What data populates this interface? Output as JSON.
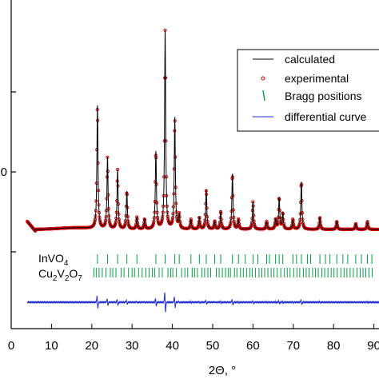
{
  "chart_data": {
    "type": "line",
    "xlabel": "2Θ, °",
    "xlim": [
      0,
      90
    ],
    "x_ticks": [
      "0",
      "10",
      "20",
      "30",
      "40",
      "50",
      "60",
      "70",
      "80",
      "90"
    ],
    "y_ticks": [
      "",
      "0",
      ""
    ],
    "legend": {
      "placement": "top-right",
      "entries": [
        {
          "name": "calculated",
          "color": "#000000",
          "marker": "line"
        },
        {
          "name": "experimental",
          "color": "#cc0000",
          "marker": "circle"
        },
        {
          "name": "Bragg positions",
          "color": "#00a040",
          "marker": "bar"
        },
        {
          "name": "differential curve",
          "color": "#1f2fd0",
          "marker": "line"
        }
      ]
    },
    "background_intensity": 0.0,
    "peaks": [
      {
        "x": 21.4,
        "h": 0.62
      },
      {
        "x": 23.9,
        "h": 0.36
      },
      {
        "x": 26.4,
        "h": 0.3
      },
      {
        "x": 28.7,
        "h": 0.19
      },
      {
        "x": 31.2,
        "h": 0.06
      },
      {
        "x": 33.1,
        "h": 0.05
      },
      {
        "x": 35.9,
        "h": 0.39
      },
      {
        "x": 38.2,
        "h": 1.0
      },
      {
        "x": 40.6,
        "h": 0.56
      },
      {
        "x": 41.7,
        "h": 0.07
      },
      {
        "x": 44.6,
        "h": 0.05
      },
      {
        "x": 46.7,
        "h": 0.06
      },
      {
        "x": 48.4,
        "h": 0.2
      },
      {
        "x": 50.5,
        "h": 0.04
      },
      {
        "x": 52.0,
        "h": 0.09
      },
      {
        "x": 54.9,
        "h": 0.28
      },
      {
        "x": 56.4,
        "h": 0.05
      },
      {
        "x": 60.0,
        "h": 0.14
      },
      {
        "x": 63.4,
        "h": 0.04
      },
      {
        "x": 65.6,
        "h": 0.05
      },
      {
        "x": 66.5,
        "h": 0.16
      },
      {
        "x": 67.4,
        "h": 0.08
      },
      {
        "x": 69.9,
        "h": 0.05
      },
      {
        "x": 72.0,
        "h": 0.24
      },
      {
        "x": 76.6,
        "h": 0.06
      },
      {
        "x": 80.8,
        "h": 0.04
      },
      {
        "x": 85.5,
        "h": 0.03
      },
      {
        "x": 88.4,
        "h": 0.04
      }
    ],
    "phases": [
      {
        "name": "InVO",
        "subscript": "4",
        "color": "#00a040",
        "positions": [
          21.4,
          23.9,
          26.4,
          28.7,
          31.2,
          35.9,
          38.2,
          40.6,
          41.7,
          44.6,
          46.7,
          48.4,
          50.5,
          52.0,
          54.9,
          56.4,
          58.1,
          60.0,
          61.2,
          63.4,
          64.1,
          65.6,
          66.5,
          67.4,
          69.9,
          70.8,
          72.0,
          73.5,
          74.3,
          76.6,
          78.0,
          79.1,
          80.8,
          82.3,
          83.5,
          85.5,
          86.9,
          88.4,
          89.5
        ]
      },
      {
        "name": "Cu2V2O7",
        "subscript_parts": [
          "Cu",
          "2",
          "V",
          "2",
          "O",
          "7"
        ],
        "color": "#00a040",
        "positions": [
          20.5,
          21.1,
          21.8,
          22.6,
          23.5,
          24.6,
          25.2,
          26.0,
          27.3,
          28.0,
          29.1,
          30.0,
          30.6,
          31.6,
          32.5,
          33.4,
          34.2,
          35.0,
          35.6,
          36.7,
          37.5,
          38.9,
          39.6,
          40.1,
          41.0,
          42.3,
          43.1,
          43.8,
          44.9,
          45.5,
          46.2,
          47.3,
          48.0,
          48.8,
          49.5,
          50.9,
          51.6,
          52.4,
          53.2,
          53.9,
          54.4,
          55.4,
          56.0,
          56.9,
          57.6,
          58.4,
          59.2,
          59.8,
          60.6,
          61.5,
          62.2,
          62.9,
          63.7,
          64.5,
          65.2,
          66.0,
          66.9,
          67.8,
          68.5,
          69.2,
          70.1,
          70.9,
          71.6,
          72.5,
          73.2,
          73.9,
          74.8,
          75.5,
          76.2,
          77.1,
          77.8,
          78.6,
          79.4,
          80.1,
          80.9,
          81.8,
          82.6,
          83.3,
          84.1,
          84.9,
          85.8,
          86.6,
          87.3,
          88.0,
          88.8,
          89.6
        ]
      }
    ]
  }
}
